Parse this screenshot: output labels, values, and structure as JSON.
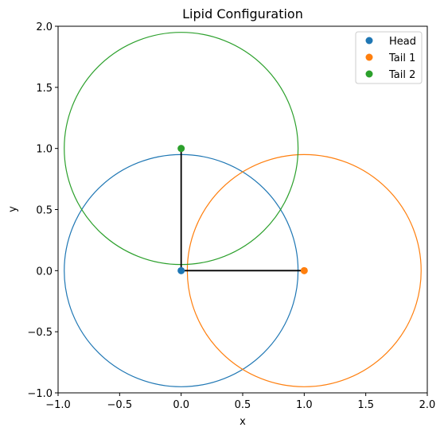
{
  "chart_data": {
    "type": "scatter",
    "title": "Lipid Configuration",
    "xlabel": "x",
    "ylabel": "y",
    "xlim": [
      -1.0,
      2.0
    ],
    "ylim": [
      -1.0,
      2.0
    ],
    "xticks": [
      -1.0,
      -0.5,
      0.0,
      0.5,
      1.0,
      1.5,
      2.0
    ],
    "yticks": [
      -1.0,
      -0.5,
      0.0,
      0.5,
      1.0,
      1.5,
      2.0
    ],
    "xtick_labels": [
      "−1.0",
      "−0.5",
      "0.0",
      "0.5",
      "1.0",
      "1.5",
      "2.0"
    ],
    "ytick_labels": [
      "−1.0",
      "−0.5",
      "0.0",
      "0.5",
      "1.0",
      "1.5",
      "2.0"
    ],
    "grid": false,
    "legend_position": "top-right",
    "series": [
      {
        "name": "Head",
        "x": 0.0,
        "y": 0.0,
        "color": "#1f77b4",
        "circle_radius": 0.95
      },
      {
        "name": "Tail 1",
        "x": 1.0,
        "y": 0.0,
        "color": "#ff7f0e",
        "circle_radius": 0.95
      },
      {
        "name": "Tail 2",
        "x": 0.0,
        "y": 1.0,
        "color": "#2ca02c",
        "circle_radius": 0.95
      }
    ],
    "bonds": [
      {
        "from": [
          0.0,
          0.0
        ],
        "to": [
          1.0,
          0.0
        ],
        "color": "#000000"
      },
      {
        "from": [
          0.0,
          0.0
        ],
        "to": [
          0.0,
          1.0
        ],
        "color": "#000000"
      }
    ]
  }
}
